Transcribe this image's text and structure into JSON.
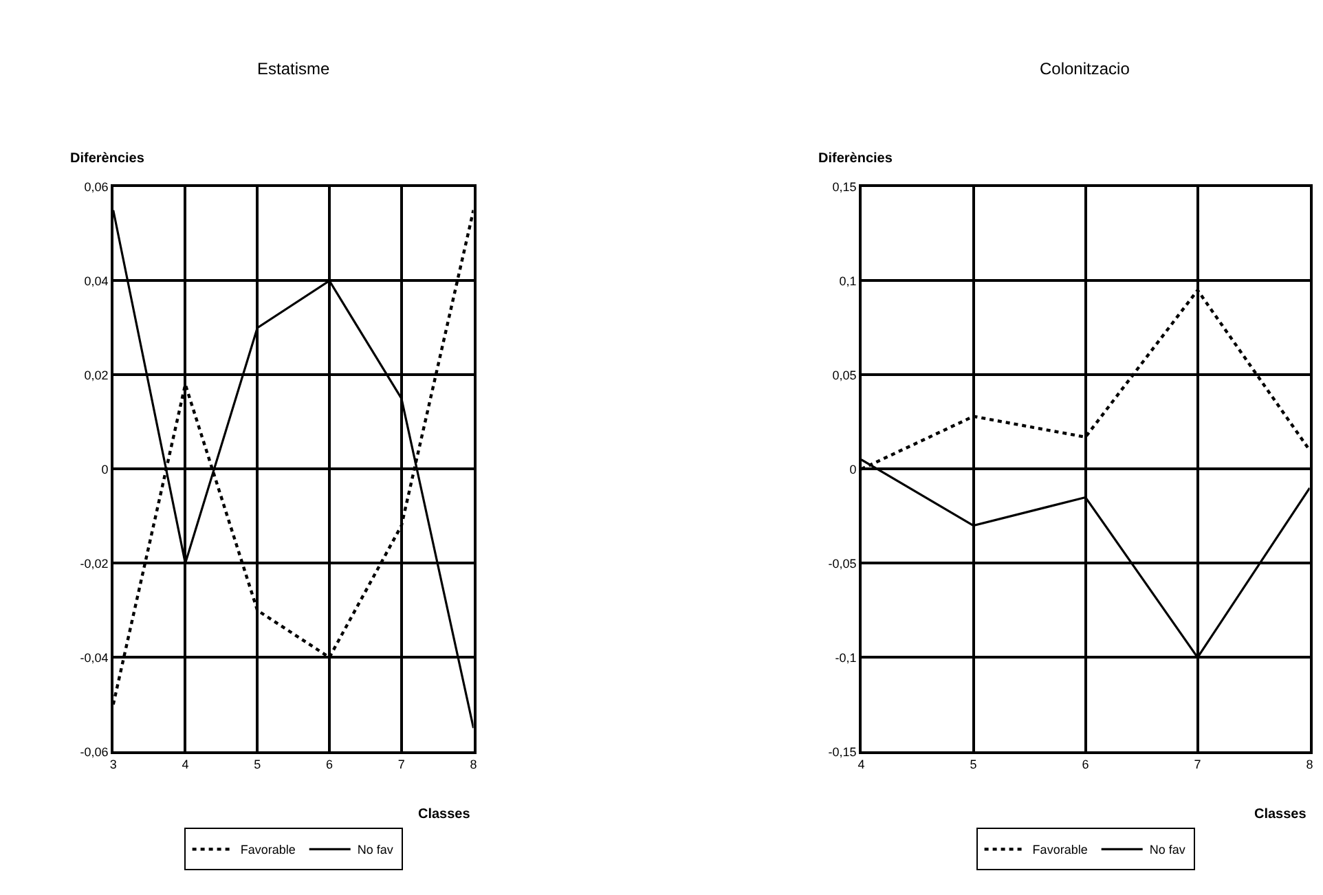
{
  "chart_data": [
    {
      "type": "line",
      "title": "Estatisme",
      "ylabel": "Diferències",
      "xlabel": "Classes",
      "x": [
        3,
        4,
        5,
        6,
        7,
        8
      ],
      "series": [
        {
          "name": "Favorable",
          "color": "#000000",
          "line_style": "dotted",
          "values": [
            -0.05,
            0.018,
            -0.03,
            -0.04,
            -0.012,
            0.055
          ]
        },
        {
          "name": "No fav",
          "color": "#000000",
          "line_style": "solid",
          "values": [
            0.055,
            -0.02,
            0.03,
            0.04,
            0.015,
            -0.055
          ]
        }
      ],
      "xlim": [
        3,
        8
      ],
      "xticks": [
        3,
        4,
        5,
        6,
        7,
        8
      ],
      "ylim": [
        -0.06,
        0.06
      ],
      "yticks": [
        {
          "value": -0.06,
          "label": "-0,06"
        },
        {
          "value": -0.04,
          "label": "-0,04"
        },
        {
          "value": -0.02,
          "label": "-0,02"
        },
        0,
        {
          "value": 0.02,
          "label": "0,02"
        },
        {
          "value": 0.04,
          "label": "0,04"
        },
        {
          "value": 0.06,
          "label": "0,06"
        }
      ],
      "grid": true,
      "legend": "bottom"
    },
    {
      "type": "line",
      "title": "Colonitzacio",
      "ylabel": "Diferències",
      "xlabel": "Classes",
      "x": [
        4,
        5,
        6,
        7,
        8
      ],
      "series": [
        {
          "name": "Favorable",
          "color": "#000000",
          "line_style": "dotted",
          "values": [
            0,
            0.028,
            0.017,
            0.095,
            0.01
          ]
        },
        {
          "name": "No fav",
          "color": "#000000",
          "line_style": "solid",
          "values": [
            0.005,
            -0.03,
            -0.015,
            -0.1,
            -0.01
          ]
        }
      ],
      "xlim": [
        4,
        8
      ],
      "xticks": [
        4,
        5,
        6,
        7,
        8
      ],
      "ylim": [
        -0.15,
        0.15
      ],
      "yticks": [
        {
          "value": -0.15,
          "label": "-0,15"
        },
        {
          "value": -0.1,
          "label": "-0,1"
        },
        {
          "value": -0.05,
          "label": "-0,05"
        },
        0,
        {
          "value": 0.05,
          "label": "0,05"
        },
        {
          "value": 0.1,
          "label": "0,1"
        },
        {
          "value": 0.15,
          "label": "0,15"
        }
      ],
      "grid": true,
      "legend": "bottom"
    }
  ]
}
